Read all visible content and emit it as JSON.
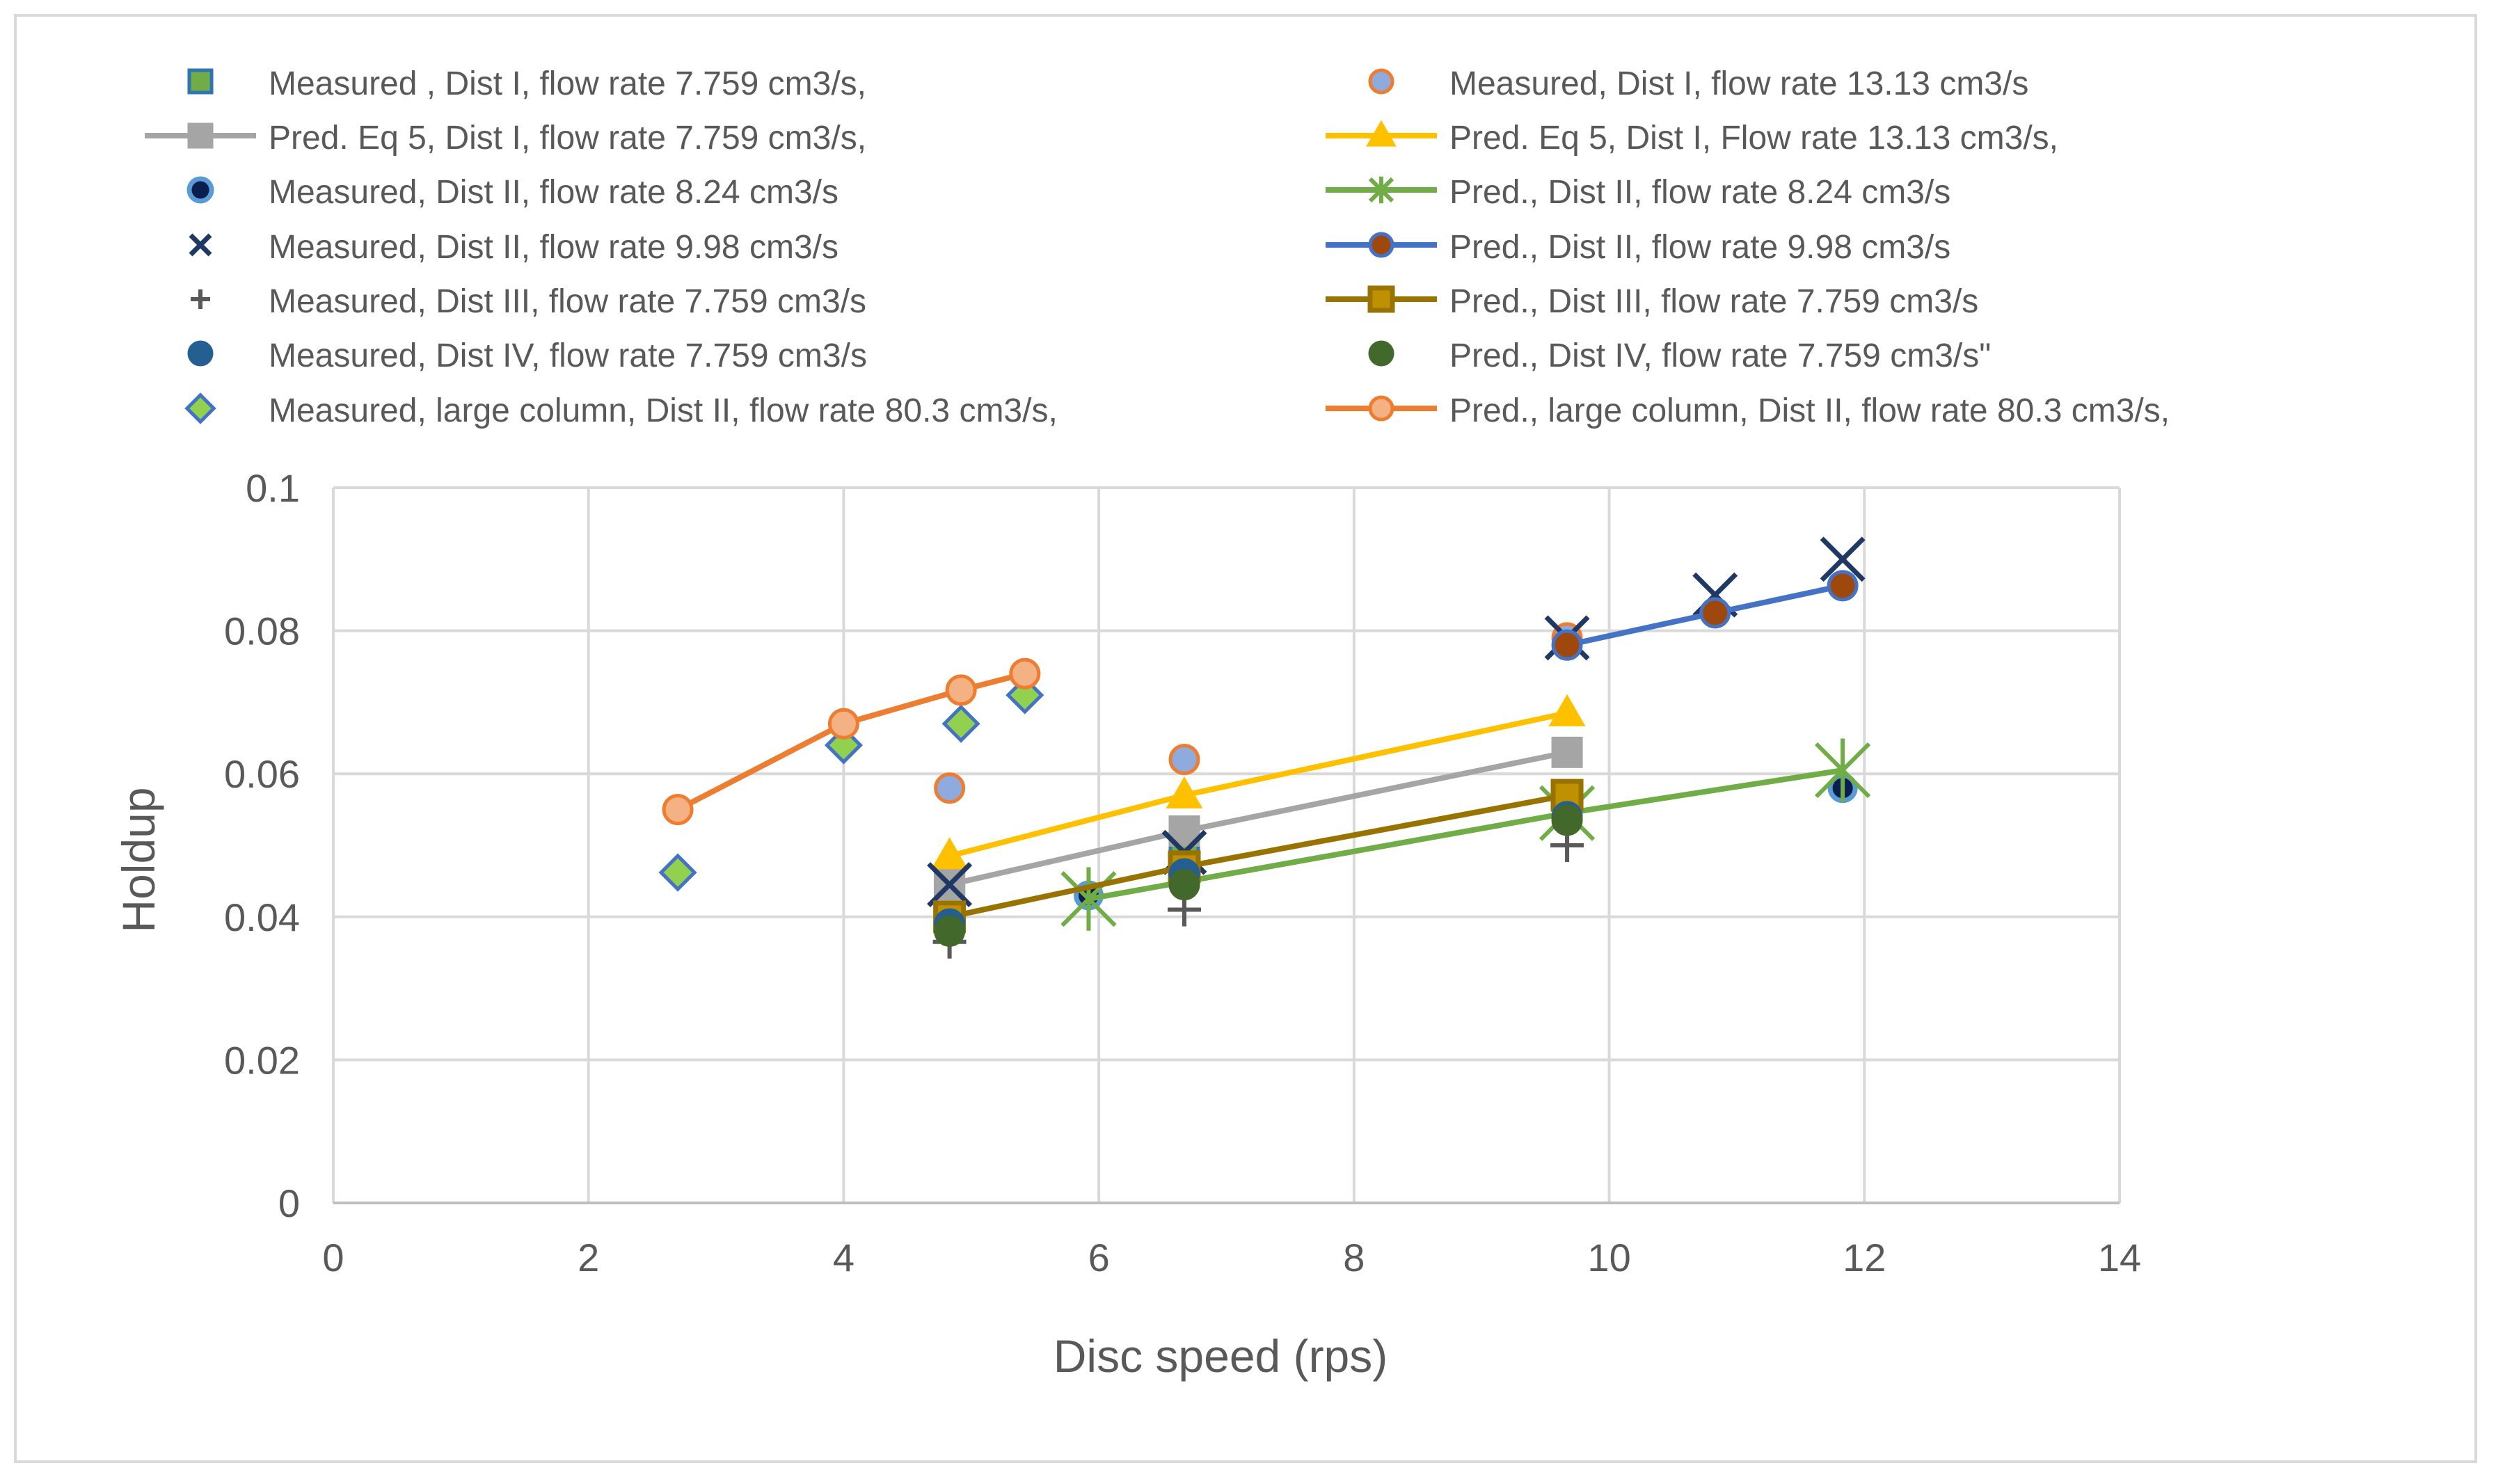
{
  "chart_data": {
    "type": "scatter",
    "title": "",
    "xlabel": "Disc speed (rps)",
    "ylabel": "Holdup",
    "xlim": [
      0,
      14
    ],
    "ylim": [
      0,
      0.1
    ],
    "x_ticks": [
      "0",
      "2",
      "4",
      "6",
      "8",
      "10",
      "12",
      "14"
    ],
    "y_ticks": [
      "0",
      "0.02",
      "0.04",
      "0.06",
      "0.08",
      "0.1"
    ],
    "grid": true,
    "legend_position": "top",
    "series": [
      {
        "name": "Measured , Dist I, flow rate 7.759 cm3/s,",
        "marker": "square",
        "line": false,
        "color": "#2e75b6",
        "fill": "#70ad47",
        "points": [
          [
            4.83,
            0.0445
          ],
          [
            6.67,
            0.049
          ]
        ]
      },
      {
        "name": "Measured, Dist I, flow rate 13.13 cm3/s",
        "marker": "circle",
        "line": false,
        "color": "#ed7d31",
        "fill": "#8faadc",
        "points": [
          [
            4.83,
            0.058
          ],
          [
            6.67,
            0.062
          ],
          [
            9.67,
            0.079
          ]
        ]
      },
      {
        "name": "Pred. Eq 5, Dist I, flow rate 7.759 cm3/s,",
        "marker": "square",
        "line": true,
        "color": "#a5a5a5",
        "fill": "#a5a5a5",
        "points": [
          [
            4.83,
            0.0445
          ],
          [
            6.67,
            0.052
          ],
          [
            9.67,
            0.063
          ]
        ]
      },
      {
        "name": "Pred. Eq 5, Dist I, Flow rate 13.13 cm3/s,",
        "marker": "triangle",
        "line": true,
        "color": "#ffc000",
        "fill": "#ffc000",
        "points": [
          [
            4.83,
            0.0485
          ],
          [
            6.67,
            0.057
          ],
          [
            9.67,
            0.0685
          ]
        ]
      },
      {
        "name": "Measured, Dist II, flow rate 8.24 cm3/s",
        "marker": "circle-ring",
        "line": false,
        "color": "#5b9bd5",
        "fill": "#0b1f4e",
        "points": [
          [
            5.92,
            0.043
          ],
          [
            11.83,
            0.058
          ]
        ]
      },
      {
        "name": "Pred., Dist II, flow rate 8.24 cm3/s",
        "marker": "star",
        "line": true,
        "color": "#70ad47",
        "fill": "#70ad47",
        "points": [
          [
            5.92,
            0.0425
          ],
          [
            9.67,
            0.0545
          ],
          [
            11.83,
            0.0605
          ]
        ]
      },
      {
        "name": "Measured, Dist II, flow rate 9.98 cm3/s",
        "marker": "x",
        "line": false,
        "color": "#203864",
        "fill": "#203864",
        "points": [
          [
            4.83,
            0.0445
          ],
          [
            6.67,
            0.049
          ],
          [
            9.67,
            0.079
          ],
          [
            10.83,
            0.085
          ],
          [
            11.83,
            0.09
          ]
        ]
      },
      {
        "name": "Pred., Dist II, flow rate 9.98 cm3/s",
        "marker": "circle",
        "line": true,
        "color": "#4472c4",
        "fill": "#9e480e",
        "points": [
          [
            9.67,
            0.078
          ],
          [
            10.83,
            0.0825
          ],
          [
            11.83,
            0.0863
          ]
        ]
      },
      {
        "name": "Measured, Dist III, flow rate 7.759 cm3/s",
        "marker": "plus",
        "line": false,
        "color": "#595959",
        "fill": "#595959",
        "points": [
          [
            4.83,
            0.0365
          ],
          [
            6.67,
            0.041
          ],
          [
            9.67,
            0.05
          ]
        ]
      },
      {
        "name": "Pred., Dist III, flow rate 7.759 cm3/s",
        "marker": "square-open",
        "line": true,
        "color": "#997300",
        "fill": "#bf9000",
        "points": [
          [
            4.83,
            0.04
          ],
          [
            6.67,
            0.047
          ],
          [
            9.67,
            0.057
          ]
        ]
      },
      {
        "name": "Measured, Dist IV, flow rate 7.759 cm3/s",
        "marker": "circle",
        "line": false,
        "color": "#255e91",
        "fill": "#255e91",
        "points": [
          [
            4.83,
            0.039
          ],
          [
            6.67,
            0.046
          ],
          [
            9.67,
            0.054
          ]
        ]
      },
      {
        "name": "Pred., Dist IV, flow rate 7.759 cm3/s\"",
        "marker": "circle",
        "line": false,
        "color": "#43682b",
        "fill": "#43682b",
        "points": [
          [
            4.83,
            0.038
          ],
          [
            6.67,
            0.0445
          ],
          [
            9.67,
            0.0535
          ]
        ]
      },
      {
        "name": "Measured, large column,  Dist II, flow rate 80.3 cm3/s,",
        "marker": "diamond",
        "line": false,
        "color": "#4472c4",
        "fill": "#92d050",
        "points": [
          [
            2.7,
            0.0462
          ],
          [
            4.0,
            0.064
          ],
          [
            4.92,
            0.067
          ],
          [
            5.42,
            0.071
          ]
        ]
      },
      {
        "name": "Pred., large column,  Dist II, flow rate 80.3 cm3/s,",
        "marker": "circle",
        "line": true,
        "color": "#ed7d31",
        "fill": "#f4b183",
        "points": [
          [
            2.7,
            0.055
          ],
          [
            4.0,
            0.067
          ],
          [
            4.92,
            0.0717
          ],
          [
            5.42,
            0.074
          ]
        ]
      }
    ]
  }
}
